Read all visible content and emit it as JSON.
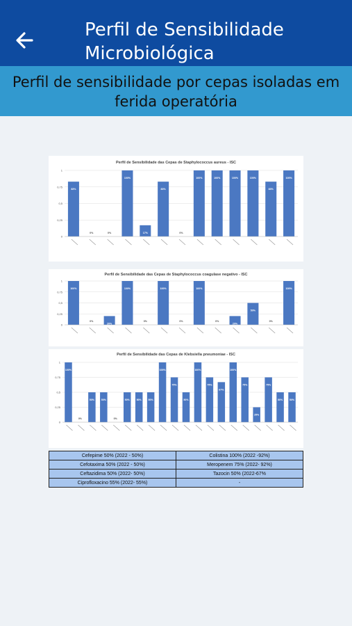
{
  "header": {
    "title": "Perfil de Sensibilidade Microbiológica"
  },
  "subheader": {
    "title": "Perfil de sensibilidade por cepas isoladas em ferida operatória"
  },
  "chart_data": [
    {
      "type": "bar",
      "title": "Perfil de Sensibilidade das Cepas de Staphylococcus aureus - ISC",
      "yticks": [
        "0",
        "0,25",
        "0,5",
        "0,75",
        "1"
      ],
      "ylim": [
        0,
        1
      ],
      "color": "#4b78c2",
      "values": [
        0.83,
        0,
        0,
        1,
        0.17,
        0.83,
        0,
        1,
        1,
        1,
        1,
        0.83,
        1
      ],
      "labels": [
        "83%",
        "0%",
        "0%",
        "100%",
        "17%",
        "83%",
        "0%",
        "100%",
        "100%",
        "100%",
        "100%",
        "83%",
        "100%"
      ]
    },
    {
      "type": "bar",
      "title": "Perfil de Sensibilidade das Cepas de Staphylococcus coagulase negativo - ISC",
      "yticks": [
        "0",
        "0,25",
        "0,5",
        "0,75",
        "1"
      ],
      "ylim": [
        0,
        1
      ],
      "color": "#4b78c2",
      "values": [
        1,
        0,
        0.2,
        1,
        0,
        1,
        0,
        1,
        0,
        0.2,
        0.5,
        0,
        1
      ],
      "labels": [
        "100%",
        "0%",
        "20%",
        "100%",
        "0%",
        "100%",
        "0%",
        "100%",
        "0%",
        "20%",
        "50%",
        "0%",
        "100%"
      ]
    },
    {
      "type": "bar",
      "title": "Perfil de Sensibilidade das Cepas de Klebsiella pneumoniae - ISC",
      "yticks": [
        "0",
        "0,25",
        "0,5",
        "0,75",
        "1"
      ],
      "ylim": [
        0,
        1
      ],
      "color": "#4b78c2",
      "values": [
        1,
        0,
        0.5,
        0.5,
        0,
        0.5,
        0.5,
        0.5,
        1,
        0.75,
        0.5,
        1,
        0.75,
        0.67,
        1,
        0.75,
        0.25,
        0.75,
        0.5,
        0.5
      ],
      "labels": [
        "100%",
        "0%",
        "50%",
        "50%",
        "0%",
        "50%",
        "50%",
        "50%",
        "100%",
        "75%",
        "50%",
        "100%",
        "75%",
        "67%",
        "100%",
        "75%",
        "25%",
        "75%",
        "50%",
        "50%"
      ]
    }
  ],
  "table": [
    [
      "Cefepime 50% (2022 - 50%)",
      "Colistina  100% (2022 -92%)"
    ],
    [
      "Cefotaxima 50% (2022 - 50%)",
      "Meropenem 75% (2022- 92%)"
    ],
    [
      "Ceftazidima 50% (2022- 50%)",
      "Tazocin 50% (2022-67%"
    ],
    [
      "Ciprofloxacino 55% (2022- 55%)",
      "-"
    ]
  ]
}
